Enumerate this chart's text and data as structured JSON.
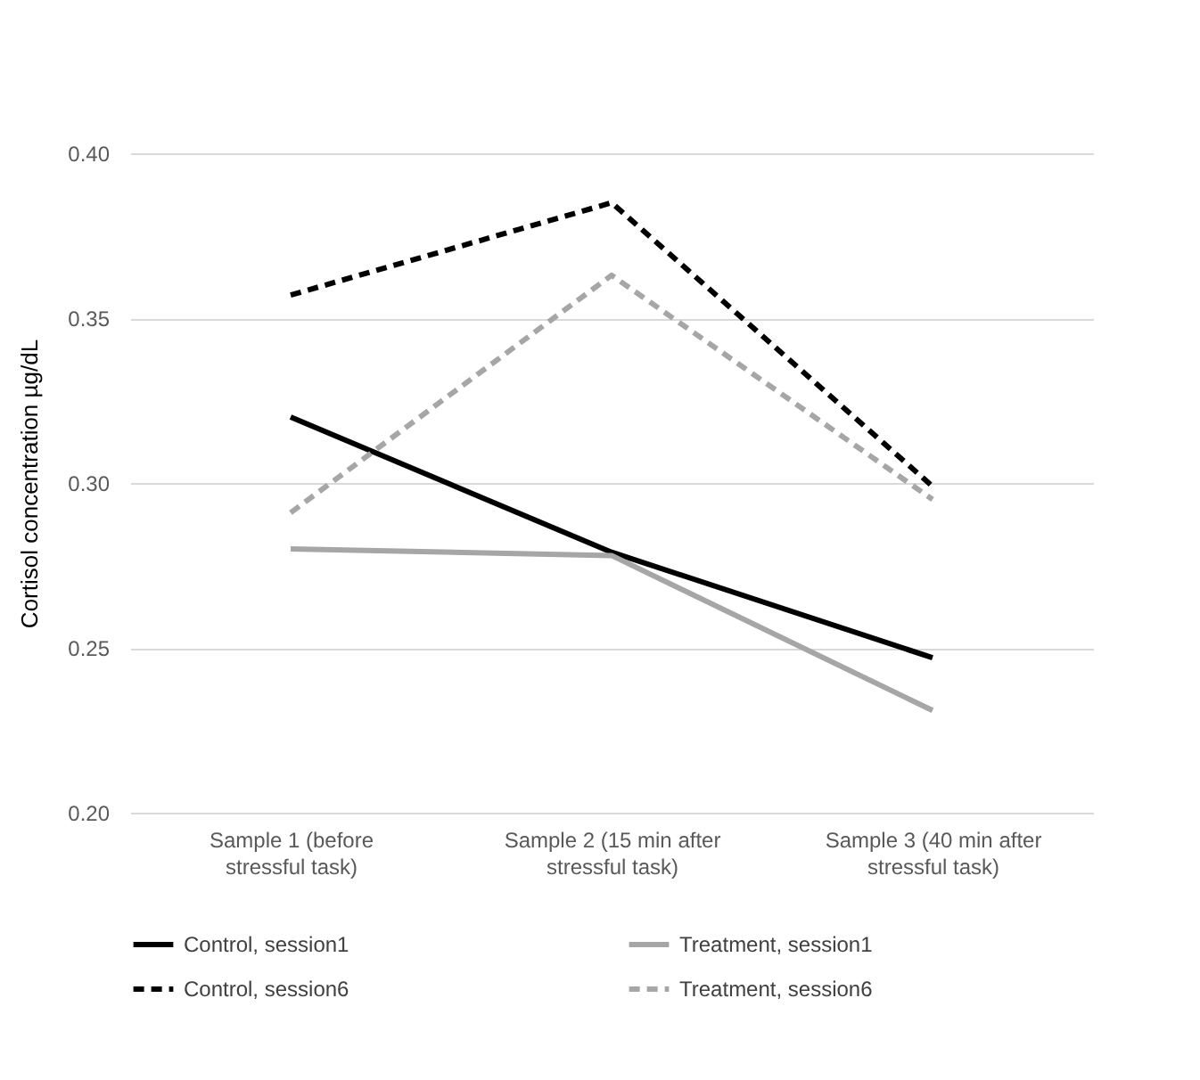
{
  "chart_data": {
    "type": "line",
    "ylabel": "Cortisol concentration µg/dL",
    "categories": [
      "Sample 1 (before stressful task)",
      "Sample 2 (15 min after stressful task)",
      "Sample 3 (40 min after stressful task)"
    ],
    "series": [
      {
        "name": "Control, session1",
        "color": "#000000",
        "line_style": "solid",
        "values": [
          0.32,
          0.279,
          0.247
        ]
      },
      {
        "name": "Treatment, session1",
        "color": "#a6a6a6",
        "line_style": "solid",
        "values": [
          0.28,
          0.278,
          0.231
        ]
      },
      {
        "name": "Control, session6",
        "color": "#000000",
        "line_style": "dashed",
        "values": [
          0.357,
          0.385,
          0.299
        ]
      },
      {
        "name": "Treatment, session6",
        "color": "#a6a6a6",
        "line_style": "dashed",
        "values": [
          0.291,
          0.363,
          0.295
        ]
      }
    ],
    "ylim": [
      0.2,
      0.4
    ],
    "yticks": [
      {
        "value": 0.2,
        "label": "0.20"
      },
      0.25,
      {
        "value": 0.3,
        "label": "0.30"
      },
      0.35,
      {
        "value": 0.4,
        "label": "0.40"
      }
    ],
    "grid": "y",
    "legend": "bottom",
    "marker": "none"
  }
}
